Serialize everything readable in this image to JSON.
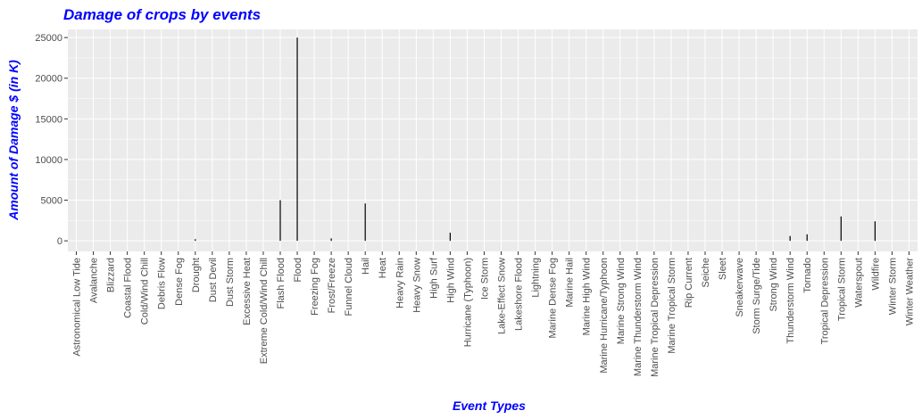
{
  "colors": {
    "panel_background": "#ebebeb",
    "grid_major": "#ffffff",
    "bar": "#000000",
    "title": "#0000ff",
    "tick_text": "#4d4d4d"
  },
  "chart_data": {
    "type": "bar",
    "title": "Damage of crops by events",
    "xlabel": "Event Types",
    "ylabel": "Amount of Damage $ (in K)",
    "ylim": [
      -1300,
      26000
    ],
    "yticks": [
      0,
      5000,
      10000,
      15000,
      20000,
      25000
    ],
    "grid": true,
    "categories": [
      "Astronomical Low Tide",
      "Avalanche",
      "Blizzard",
      "Coastal Flood",
      "Cold/Wind Chill",
      "Debris Flow",
      "Dense Fog",
      "Drought",
      "Dust Devil",
      "Dust Storm",
      "Excessive Heat",
      "Extreme Cold/Wind Chill",
      "Flash Flood",
      "Flood",
      "Freezing Fog",
      "Frost/Freeze",
      "Funnel Cloud",
      "Hail",
      "Heat",
      "Heavy Rain",
      "Heavy Snow",
      "High Surf",
      "High Wind",
      "Hurricane (Typhoon)",
      "Ice Storm",
      "Lake-Effect Snow",
      "Lakeshore Flood",
      "Lightning",
      "Marine Dense Fog",
      "Marine Hail",
      "Marine High Wind",
      "Marine Hurricane/Typhoon",
      "Marine Strong Wind",
      "Marine Thunderstorm Wind",
      "Marine Tropical Depression",
      "Marine Tropical Storm",
      "Rip Current",
      "Seiche",
      "Sleet",
      "Sneakerwave",
      "Storm Surge/Tide",
      "Strong Wind",
      "Thunderstorm Wind",
      "Tornado",
      "Tropical Depression",
      "Tropical Storm",
      "Waterspout",
      "Wildfire",
      "Winter Storm",
      "Winter Weather"
    ],
    "values": [
      0,
      0,
      0,
      0,
      0,
      0,
      0,
      200,
      0,
      0,
      0,
      0,
      5000,
      25000,
      0,
      300,
      0,
      4600,
      0,
      0,
      0,
      0,
      1000,
      0,
      0,
      0,
      0,
      0,
      0,
      0,
      0,
      0,
      0,
      0,
      0,
      0,
      0,
      0,
      0,
      0,
      0,
      0,
      600,
      800,
      0,
      3000,
      0,
      2400,
      0,
      0
    ]
  }
}
